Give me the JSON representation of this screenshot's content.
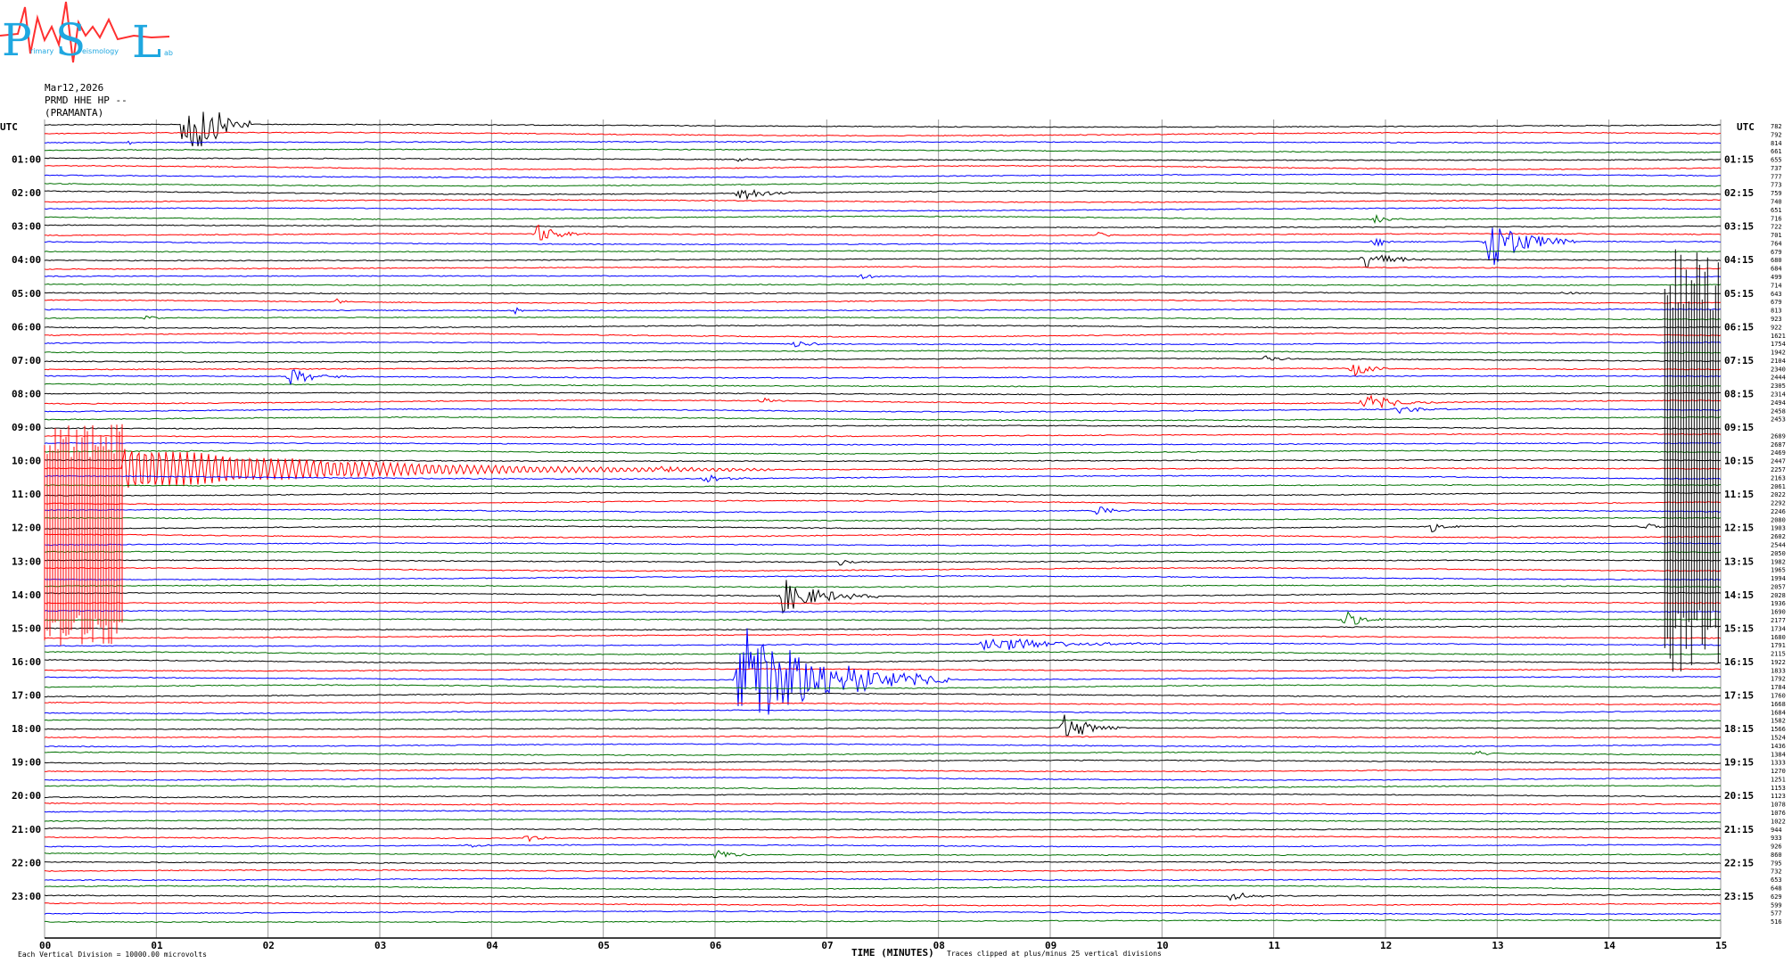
{
  "logo": {
    "letters": "PSL",
    "small_text": [
      "rimary",
      "eismology",
      "ab"
    ]
  },
  "header": {
    "date": "Mar12,2026",
    "station": "PRMD HHE HP --",
    "location": "(PRAMANTA)"
  },
  "footer": {
    "scale_note": "Each Vertical Division = 10000.00 microvolts",
    "x_title": "TIME (MINUTES)",
    "clip_note": "Traces clipped at plus/minus 25 vertical divisions"
  },
  "chart_data": {
    "type": "line",
    "description_type": "helicorder",
    "left_axis_title": "UTC",
    "right_axis_title": "UTC",
    "hours_left": [
      "01:00",
      "02:00",
      "03:00",
      "04:00",
      "05:00",
      "06:00",
      "07:00",
      "08:00",
      "09:00",
      "10:00",
      "11:00",
      "12:00",
      "13:00",
      "14:00",
      "15:00",
      "16:00",
      "17:00",
      "18:00",
      "19:00",
      "20:00",
      "21:00",
      "22:00",
      "23:00"
    ],
    "hours_right": [
      "01:15",
      "02:15",
      "03:15",
      "04:15",
      "05:15",
      "06:15",
      "07:15",
      "08:15",
      "09:15",
      "10:15",
      "11:15",
      "12:15",
      "13:15",
      "14:15",
      "15:15",
      "16:15",
      "17:15",
      "18:15",
      "19:15",
      "20:15",
      "21:15",
      "22:15",
      "23:15"
    ],
    "x_ticks": [
      "00",
      "01",
      "02",
      "03",
      "04",
      "05",
      "06",
      "07",
      "08",
      "09",
      "10",
      "11",
      "12",
      "13",
      "14",
      "15"
    ],
    "xlim": [
      0,
      15
    ],
    "trace_count": 96,
    "trace_minutes": 15,
    "trace_colors": [
      "#000000",
      "#ff0000",
      "#0000ff",
      "#007000"
    ],
    "grid": true,
    "counts": [
      "782",
      "792",
      "814",
      "661",
      "655",
      "737",
      "777",
      "773",
      "759",
      "740",
      "651",
      "716",
      "722",
      "701",
      "764",
      "679",
      "680",
      "684",
      "499",
      "714",
      "643",
      "679",
      "813",
      "923",
      "922",
      "1621",
      "1754",
      "1942",
      "2104",
      "2340",
      "2444",
      "2305",
      "2314",
      "2494",
      "2458",
      "2453",
      "",
      "2689",
      "2687",
      "2469",
      "2447",
      "2257",
      "2163",
      "2061",
      "2022",
      "2292",
      "2246",
      "2080",
      "1903",
      "2602",
      "2544",
      "2050",
      "1982",
      "1965",
      "1994",
      "2057",
      "2028",
      "1936",
      "1690",
      "2177",
      "1734",
      "1680",
      "1791",
      "2115",
      "1922",
      "1833",
      "1792",
      "1784",
      "1760",
      "1668",
      "1684",
      "1582",
      "1566",
      "1524",
      "1436",
      "1384",
      "1333",
      "1270",
      "1251",
      "1153",
      "1123",
      "1078",
      "1076",
      "1022",
      "944",
      "933",
      "926",
      "860",
      "795",
      "732",
      "653",
      "648",
      "629",
      "599",
      "577",
      "516"
    ],
    "events": [
      {
        "trace": 0,
        "minute": 1.25,
        "amp": 60,
        "dur": 0.6
      },
      {
        "trace": 2,
        "minute": 0.75,
        "amp": 3,
        "dur": 0.2
      },
      {
        "trace": 4,
        "minute": 6.2,
        "amp": 3,
        "dur": 0.3
      },
      {
        "trace": 8,
        "minute": 6.2,
        "amp": 10,
        "dur": 0.6
      },
      {
        "trace": 11,
        "minute": 11.9,
        "amp": 6,
        "dur": 0.3
      },
      {
        "trace": 13,
        "minute": 4.4,
        "amp": 12,
        "dur": 0.5
      },
      {
        "trace": 13,
        "minute": 9.4,
        "amp": 5,
        "dur": 0.2
      },
      {
        "trace": 14,
        "minute": 11.9,
        "amp": 6,
        "dur": 0.4
      },
      {
        "trace": 14,
        "minute": 12.9,
        "amp": 35,
        "dur": 0.8
      },
      {
        "trace": 16,
        "minute": 11.8,
        "amp": 12,
        "dur": 0.6
      },
      {
        "trace": 18,
        "minute": 7.3,
        "amp": 3,
        "dur": 0.5
      },
      {
        "trace": 20,
        "minute": 13.6,
        "amp": 3,
        "dur": 0.3
      },
      {
        "trace": 21,
        "minute": 2.6,
        "amp": 4,
        "dur": 0.2
      },
      {
        "trace": 22,
        "minute": 4.2,
        "amp": 4,
        "dur": 0.2
      },
      {
        "trace": 23,
        "minute": 0.9,
        "amp": 3,
        "dur": 0.3
      },
      {
        "trace": 26,
        "minute": 6.7,
        "amp": 5,
        "dur": 0.4
      },
      {
        "trace": 28,
        "minute": 10.9,
        "amp": 4,
        "dur": 0.4
      },
      {
        "trace": 29,
        "minute": 11.7,
        "amp": 10,
        "dur": 0.4
      },
      {
        "trace": 30,
        "minute": 2.2,
        "amp": 10,
        "dur": 0.6
      },
      {
        "trace": 33,
        "minute": 11.8,
        "amp": 11,
        "dur": 0.7
      },
      {
        "trace": 33,
        "minute": 6.4,
        "amp": 5,
        "dur": 0.3
      },
      {
        "trace": 34,
        "minute": 12.1,
        "amp": 5,
        "dur": 0.6
      },
      {
        "trace": 41,
        "minute": 5.5,
        "amp": 4,
        "dur": 0.4
      },
      {
        "trace": 42,
        "minute": 5.9,
        "amp": 6,
        "dur": 0.5
      },
      {
        "trace": 46,
        "minute": 9.4,
        "amp": 6,
        "dur": 0.4
      },
      {
        "trace": 48,
        "minute": 12.4,
        "amp": 7,
        "dur": 0.3
      },
      {
        "trace": 48,
        "minute": 14.3,
        "amp": 5,
        "dur": 0.3
      },
      {
        "trace": 52,
        "minute": 7.1,
        "amp": 5,
        "dur": 0.3
      },
      {
        "trace": 56,
        "minute": 6.6,
        "amp": 20,
        "dur": 0.9
      },
      {
        "trace": 59,
        "minute": 11.6,
        "amp": 14,
        "dur": 0.4
      },
      {
        "trace": 62,
        "minute": 8.4,
        "amp": 10,
        "dur": 1.6
      },
      {
        "trace": 66,
        "minute": 6.2,
        "amp": 70,
        "dur": 1.9
      },
      {
        "trace": 72,
        "minute": 9.1,
        "amp": 18,
        "dur": 0.6
      },
      {
        "trace": 75,
        "minute": 12.8,
        "amp": 4,
        "dur": 0.3
      },
      {
        "trace": 85,
        "minute": 4.3,
        "amp": 5,
        "dur": 0.3
      },
      {
        "trace": 86,
        "minute": 3.8,
        "amp": 4,
        "dur": 0.3
      },
      {
        "trace": 87,
        "minute": 6.0,
        "amp": 8,
        "dur": 0.4
      },
      {
        "trace": 92,
        "minute": 10.6,
        "amp": 6,
        "dur": 0.5
      }
    ],
    "clipped_blocks": [
      {
        "trace_start": 36,
        "trace_end": 62,
        "minute_start": 0.0,
        "minute_end": 0.7,
        "color": "#ff0000"
      },
      {
        "trace_start": 15,
        "trace_end": 65,
        "minute_start": 14.5,
        "minute_end": 15.0,
        "color": "#000000"
      }
    ],
    "coda": {
      "trace": 41,
      "minute_start": 0.7,
      "minute_end": 6.5,
      "amp": 25,
      "color": "#ff0000"
    }
  }
}
